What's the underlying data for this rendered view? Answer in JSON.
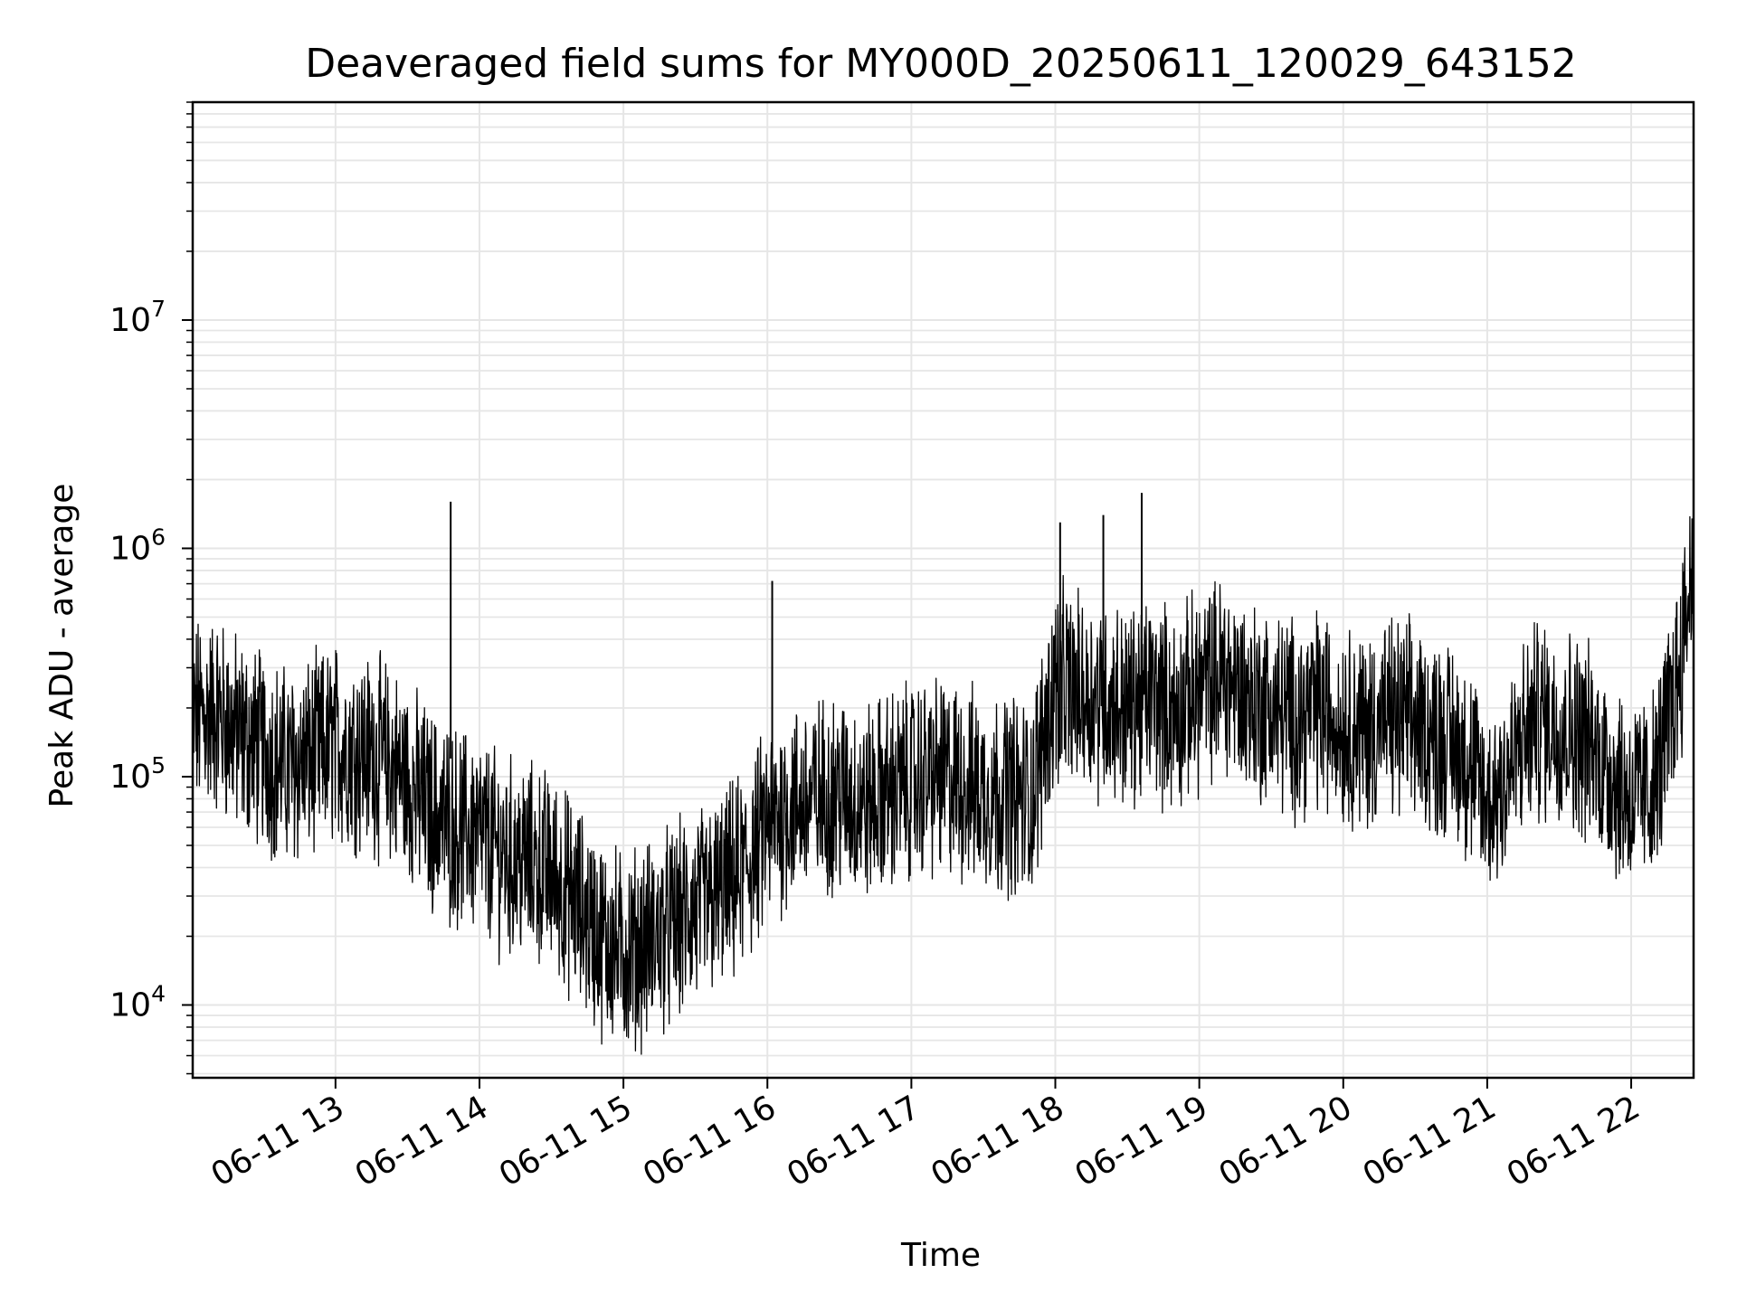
{
  "chart_data": {
    "type": "line",
    "title": "Deaveraged field sums for MY000D_20250611_120029_643152",
    "xlabel": "Time",
    "ylabel": "Peak ADU - average",
    "yscale": "log",
    "ylim": [
      4800,
      90000000
    ],
    "xlim": [
      "2025-06-11T12:00:29",
      "2025-06-11T22:26:00"
    ],
    "x_ticks": [
      {
        "t": "2025-06-11T13:00:00",
        "label": "06-11 13"
      },
      {
        "t": "2025-06-11T14:00:00",
        "label": "06-11 14"
      },
      {
        "t": "2025-06-11T15:00:00",
        "label": "06-11 15"
      },
      {
        "t": "2025-06-11T16:00:00",
        "label": "06-11 16"
      },
      {
        "t": "2025-06-11T17:00:00",
        "label": "06-11 17"
      },
      {
        "t": "2025-06-11T18:00:00",
        "label": "06-11 18"
      },
      {
        "t": "2025-06-11T19:00:00",
        "label": "06-11 19"
      },
      {
        "t": "2025-06-11T20:00:00",
        "label": "06-11 20"
      },
      {
        "t": "2025-06-11T21:00:00",
        "label": "06-11 21"
      },
      {
        "t": "2025-06-11T22:00:00",
        "label": "06-11 22"
      }
    ],
    "y_ticks": [
      {
        "value": 10000,
        "base": "10",
        "exp": "4"
      },
      {
        "value": 100000,
        "base": "10",
        "exp": "5"
      },
      {
        "value": 1000000,
        "base": "10",
        "exp": "6"
      },
      {
        "value": 10000000,
        "base": "10",
        "exp": "7"
      }
    ],
    "grid": true,
    "line_color": "#000000",
    "grid_color": "#e6e6e6",
    "series": [
      {
        "x": [
          "2025-06-11T12:00:29",
          "2025-06-11T12:10:00",
          "2025-06-11T12:20:00",
          "2025-06-11T12:30:00",
          "2025-06-11T12:40:00",
          "2025-06-11T12:50:00",
          "2025-06-11T13:00:00",
          "2025-06-11T13:10:00",
          "2025-06-11T13:20:00",
          "2025-06-11T13:30:00",
          "2025-06-11T13:40:00",
          "2025-06-11T13:50:00",
          "2025-06-11T14:00:00",
          "2025-06-11T14:10:00",
          "2025-06-11T14:20:00",
          "2025-06-11T14:30:00",
          "2025-06-11T14:40:00",
          "2025-06-11T14:50:00",
          "2025-06-11T15:00:00",
          "2025-06-11T15:10:00",
          "2025-06-11T15:20:00",
          "2025-06-11T15:30:00",
          "2025-06-11T15:40:00",
          "2025-06-11T15:50:00",
          "2025-06-11T16:00:00",
          "2025-06-11T16:10:00",
          "2025-06-11T16:20:00",
          "2025-06-11T16:30:00",
          "2025-06-11T16:40:00",
          "2025-06-11T16:50:00",
          "2025-06-11T17:00:00",
          "2025-06-11T17:10:00",
          "2025-06-11T17:20:00",
          "2025-06-11T17:30:00",
          "2025-06-11T17:40:00",
          "2025-06-11T17:50:00",
          "2025-06-11T18:00:00",
          "2025-06-11T18:10:00",
          "2025-06-11T18:20:00",
          "2025-06-11T18:30:00",
          "2025-06-11T18:40:00",
          "2025-06-11T18:50:00",
          "2025-06-11T19:00:00",
          "2025-06-11T19:10:00",
          "2025-06-11T19:20:00",
          "2025-06-11T19:30:00",
          "2025-06-11T19:40:00",
          "2025-06-11T19:50:00",
          "2025-06-11T20:00:00",
          "2025-06-11T20:10:00",
          "2025-06-11T20:20:00",
          "2025-06-11T20:30:00",
          "2025-06-11T20:40:00",
          "2025-06-11T20:50:00",
          "2025-06-11T21:00:00",
          "2025-06-11T21:10:00",
          "2025-06-11T21:20:00",
          "2025-06-11T21:30:00",
          "2025-06-11T21:40:00",
          "2025-06-11T21:50:00",
          "2025-06-11T22:00:00",
          "2025-06-11T22:10:00",
          "2025-06-11T22:20:00",
          "2025-06-11T22:26:00"
        ],
        "y": [
          180000,
          190000,
          150000,
          130000,
          110000,
          120000,
          140000,
          130000,
          120000,
          95000,
          70000,
          60000,
          55000,
          45000,
          42000,
          38000,
          28000,
          20000,
          17000,
          19000,
          22000,
          26000,
          30000,
          38000,
          60000,
          75000,
          80000,
          85000,
          75000,
          85000,
          95000,
          100000,
          95000,
          85000,
          85000,
          80000,
          260000,
          230000,
          220000,
          200000,
          230000,
          190000,
          240000,
          280000,
          220000,
          200000,
          180000,
          200000,
          170000,
          160000,
          180000,
          170000,
          150000,
          130000,
          75000,
          110000,
          180000,
          170000,
          150000,
          110000,
          80000,
          90000,
          300000,
          900000
        ],
        "spikes": [
          {
            "t": "2025-06-11T13:48:00",
            "value": 1600000
          },
          {
            "t": "2025-06-11T16:02:00",
            "value": 720000
          },
          {
            "t": "2025-06-11T18:36:00",
            "value": 1750000
          },
          {
            "t": "2025-06-11T18:20:00",
            "value": 1400000
          },
          {
            "t": "2025-06-11T18:02:00",
            "value": 1300000
          }
        ]
      }
    ]
  }
}
